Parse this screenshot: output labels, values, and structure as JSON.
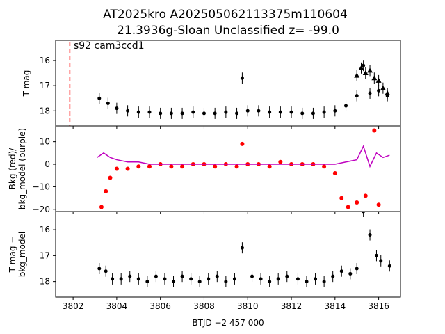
{
  "chart_data": [
    {
      "type": "scatter",
      "panel": "top",
      "title_line1": "AT2025kro  A202505062113375m110604",
      "title_line2": "21.3936g-Sloan Unclassified z= -99.0",
      "annotation": "s92 cam3ccd1",
      "marker_line_x": 3801.85,
      "ylabel": "T mag",
      "y_inverted": true,
      "ylim": [
        18.6,
        15.2
      ],
      "yticks": [
        "16",
        "17",
        "18"
      ],
      "series": [
        {
          "marker": "circle",
          "color": "#000000",
          "x": [
            3803.2,
            3803.6,
            3804.0,
            3804.5,
            3805.0,
            3805.5,
            3806.0,
            3806.5,
            3807.0,
            3807.5,
            3808.0,
            3808.5,
            3809.0,
            3809.5,
            3809.75,
            3810.0,
            3810.5,
            3811.0,
            3811.5,
            3812.0,
            3812.5,
            3813.0,
            3813.5,
            3814.0,
            3814.5,
            3815.0,
            3815.3,
            3815.6,
            3816.0,
            3816.4
          ],
          "y": [
            17.5,
            17.7,
            17.9,
            18.0,
            18.05,
            18.05,
            18.1,
            18.1,
            18.1,
            18.05,
            18.1,
            18.1,
            18.05,
            18.1,
            16.7,
            18.0,
            18.0,
            18.05,
            18.05,
            18.05,
            18.1,
            18.1,
            18.05,
            18.0,
            17.8,
            17.4,
            16.2,
            17.3,
            17.2,
            17.4
          ]
        },
        {
          "marker": "triangle",
          "color": "#000000",
          "x": [
            3815.0,
            3815.2,
            3815.4,
            3815.6,
            3815.8,
            3816.0,
            3816.2,
            3816.4
          ],
          "y": [
            16.6,
            16.3,
            16.5,
            16.4,
            16.7,
            16.8,
            17.1,
            17.3
          ]
        }
      ]
    },
    {
      "type": "scatter",
      "panel": "middle",
      "ylabel": "Bkg (red)/\nbkg_model (purple)",
      "ylim": [
        -21,
        17
      ],
      "yticks": [
        "10",
        "0",
        "−10",
        "−20"
      ],
      "series": [
        {
          "name": "",
          "color": "#ff0000",
          "x": [
            3803.3,
            3803.5,
            3803.7,
            3804.0,
            3804.5,
            3805.0,
            3805.5,
            3806.0,
            3806.5,
            3807.0,
            3807.5,
            3808.0,
            3808.5,
            3809.0,
            3809.5,
            3809.75,
            3810.0,
            3810.5,
            3811.0,
            3811.5,
            3812.0,
            3812.5,
            3813.0,
            3813.5,
            3814.0,
            3814.3,
            3814.6,
            3815.0,
            3815.4,
            3815.8,
            3816.0
          ],
          "y": [
            -19,
            -12,
            -6,
            -2,
            -2,
            -1,
            -1,
            0,
            -1,
            -1,
            0,
            0,
            -1,
            0,
            -1,
            9,
            0,
            0,
            -1,
            1,
            0,
            0,
            0,
            -1,
            -4,
            -15,
            -19,
            -17,
            -14,
            15,
            -18
          ]
        },
        {
          "name": "",
          "color": "#bf00bf",
          "x": [
            3803.1,
            3803.4,
            3803.7,
            3804.0,
            3804.5,
            3805.0,
            3805.5,
            3806.0,
            3806.5,
            3807.0,
            3807.5,
            3808.0,
            3808.5,
            3809.0,
            3809.5,
            3810.0,
            3810.5,
            3811.0,
            3811.5,
            3812.0,
            3812.5,
            3813.0,
            3813.5,
            3814.0,
            3814.5,
            3815.0,
            3815.3,
            3815.6,
            3815.9,
            3816.2,
            3816.5
          ],
          "y": [
            3,
            5,
            3,
            2,
            1,
            1,
            0,
            0,
            0,
            0,
            0,
            0,
            0,
            0,
            0,
            0,
            0,
            0,
            0,
            0,
            0,
            0,
            0,
            0,
            1,
            2,
            8,
            -1,
            5,
            3,
            4
          ]
        }
      ]
    },
    {
      "type": "scatter",
      "panel": "bottom",
      "ylabel": "T mag −\nbkg_model",
      "xlabel": "BTJD −2 457 000",
      "y_inverted": true,
      "ylim": [
        18.6,
        15.3
      ],
      "yticks": [
        "16",
        "17",
        "18"
      ],
      "xlim": [
        3801.2,
        3817.0
      ],
      "xticks": [
        "3802",
        "3804",
        "3806",
        "3808",
        "3810",
        "3812",
        "3814",
        "3816"
      ],
      "series": [
        {
          "marker": "circle",
          "color": "#000000",
          "x": [
            3803.2,
            3803.5,
            3803.8,
            3804.2,
            3804.6,
            3805.0,
            3805.4,
            3805.8,
            3806.2,
            3806.6,
            3807.0,
            3807.4,
            3807.8,
            3808.2,
            3808.6,
            3809.0,
            3809.4,
            3809.75,
            3810.2,
            3810.6,
            3811.0,
            3811.4,
            3811.8,
            3812.3,
            3812.7,
            3813.1,
            3813.5,
            3813.9,
            3814.3,
            3814.7,
            3815.0,
            3815.3,
            3815.6,
            3815.9,
            3816.1,
            3816.5
          ],
          "y": [
            17.5,
            17.6,
            17.9,
            17.9,
            17.8,
            17.9,
            18.0,
            17.8,
            17.9,
            18.0,
            17.8,
            17.9,
            18.0,
            17.9,
            17.8,
            18.0,
            17.9,
            16.7,
            17.8,
            17.9,
            18.0,
            17.9,
            17.8,
            17.9,
            18.0,
            17.9,
            18.0,
            17.8,
            17.6,
            17.7,
            17.5,
            15.3,
            16.2,
            17.0,
            17.2,
            17.4
          ]
        }
      ]
    }
  ]
}
